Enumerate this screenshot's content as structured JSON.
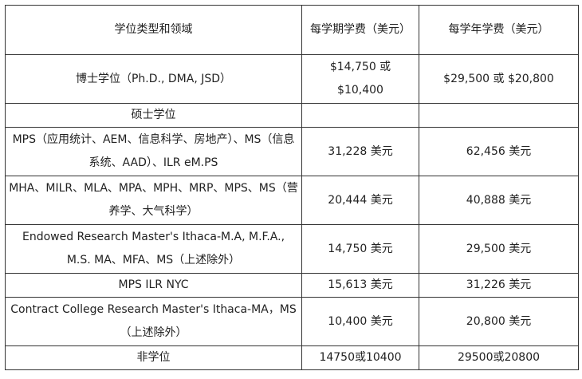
{
  "table": {
    "headers": [
      "学位类型和领域",
      "每学期学费（美元）",
      "每学年学费（美元）"
    ],
    "rows": [
      [
        "博士学位（Ph.D., DMA, JSD）",
        "$14,750 或 $10,400",
        "$29,500 或 $20,800"
      ],
      [
        "硕士学位",
        "",
        ""
      ],
      [
        "MPS（应用统计、AEM、信息科学、房地产）、MS（信息系统、AAD）、ILR eM.PS",
        "31,228 美元",
        "62,456 美元"
      ],
      [
        "MHA、MILR、MLA、MPA、MPH、MRP、MPS、MS（营养学、大气科学）",
        "20,444 美元",
        "40,888 美元"
      ],
      [
        "Endowed Research Master's Ithaca-M.A, M.F.A., M.S. MA、MFA、MS（上述除外）",
        "14,750 美元",
        "29,500 美元"
      ],
      [
        "MPS ILR NYC",
        "15,613 美元",
        "31,226 美元"
      ],
      [
        "Contract College Research Master's Ithaca-MA，MS（上述除外）",
        "10,400 美元",
        "20,800 美元"
      ],
      [
        "非学位",
        "14750或10400",
        "29500或20800"
      ]
    ]
  }
}
